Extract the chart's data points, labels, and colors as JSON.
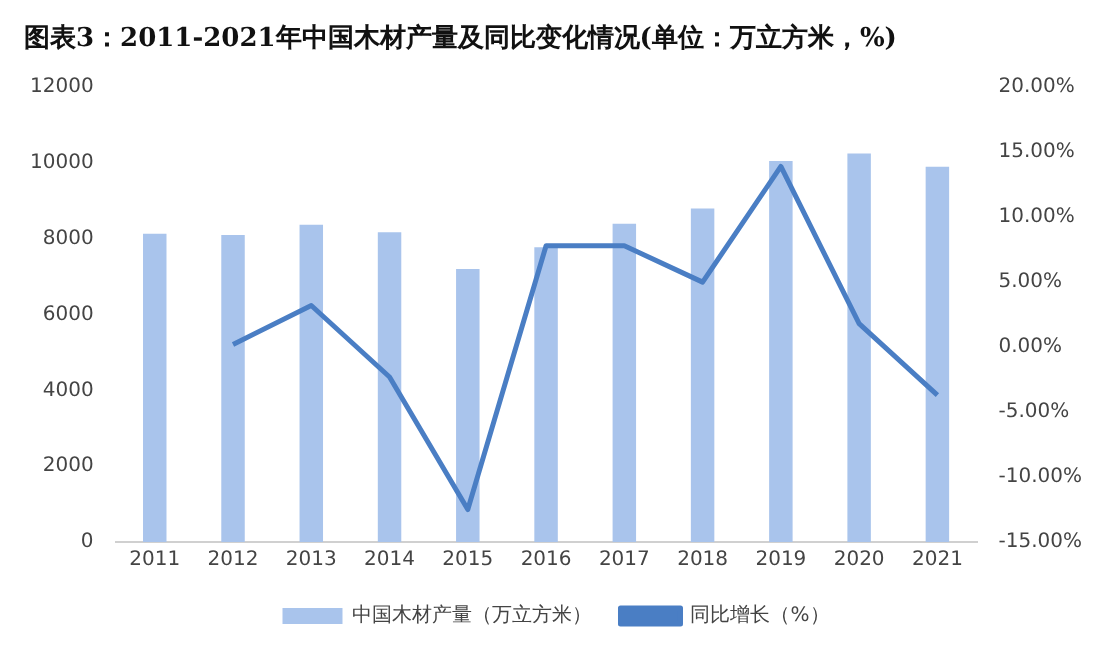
{
  "chart_data": {
    "type": "bar",
    "title": "图表3：2011-2021年中国木材产量及同比变化情况(单位：万立方米，%)",
    "categories": [
      "2011",
      "2012",
      "2013",
      "2014",
      "2015",
      "2016",
      "2017",
      "2018",
      "2019",
      "2020",
      "2021"
    ],
    "series": [
      {
        "name": "中国木材产量（万立方米）",
        "color": "#a9c4ec",
        "values": [
          8130,
          8100,
          8370,
          8170,
          7200,
          7780,
          8400,
          8800,
          10050,
          10250,
          9900
        ]
      },
      {
        "name": "同比增长（%）",
        "type": "line",
        "axis": "y2",
        "color": "#4a7ec4",
        "values": [
          null,
          0.2,
          3.2,
          -2.3,
          -12.5,
          7.8,
          7.8,
          5.0,
          13.9,
          1.8,
          -3.7
        ]
      }
    ],
    "ylim": [
      0,
      12000
    ],
    "yticks": [
      0,
      2000,
      4000,
      6000,
      8000,
      10000,
      12000
    ],
    "y2lim": [
      -15,
      20
    ],
    "y2ticks": [
      {
        "value": -15,
        "label": "-15.00%"
      },
      {
        "value": -10,
        "label": "-10.00%"
      },
      {
        "value": -5,
        "label": "-5.00%"
      },
      {
        "value": 0,
        "label": "0.00%"
      },
      {
        "value": 5,
        "label": "5.00%"
      },
      {
        "value": 10,
        "label": "10.00%"
      },
      {
        "value": 15,
        "label": "15.00%"
      },
      {
        "value": 20,
        "label": "20.00%"
      }
    ],
    "legend": "bottom",
    "marker": "none",
    "line_style": "solid"
  }
}
